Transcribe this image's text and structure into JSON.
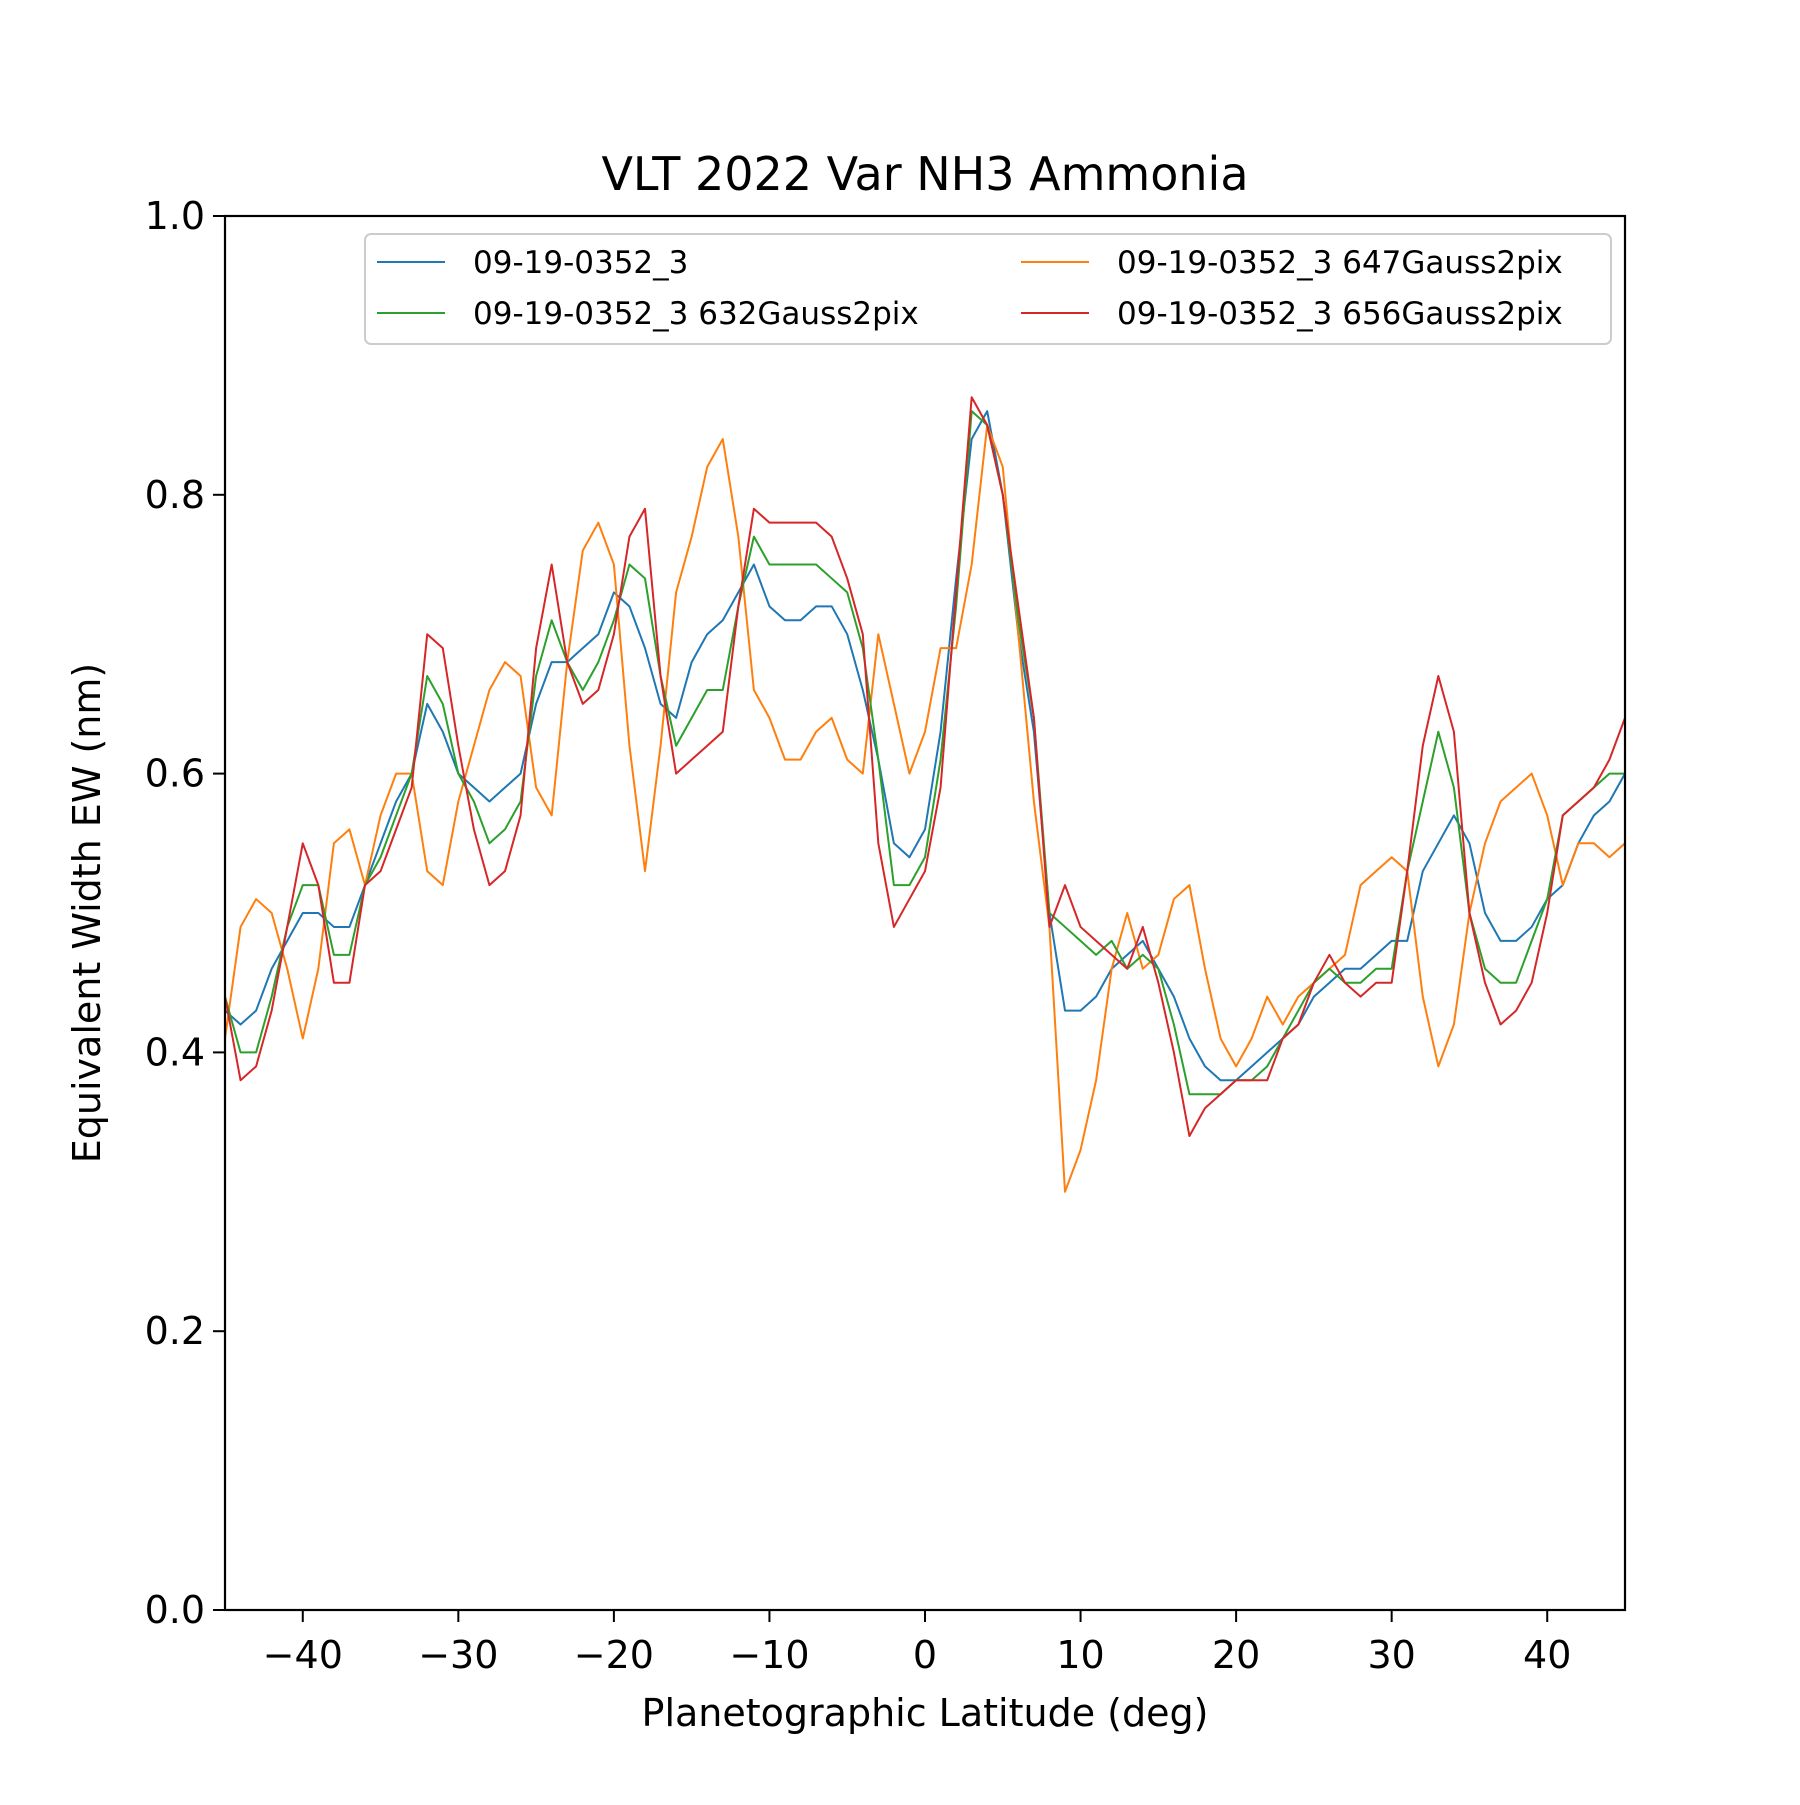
{
  "chart_data": {
    "type": "line",
    "title": "VLT 2022 Var NH3 Ammonia",
    "xlabel": "Planetographic Latitude (deg)",
    "ylabel": "Equivalent Width EW (nm)",
    "xlim": [
      -45,
      45
    ],
    "ylim": [
      0.0,
      1.0
    ],
    "grid": false,
    "legend_position": "top-right",
    "legend_columns": 2,
    "xticks": [
      -40,
      -30,
      -20,
      -10,
      0,
      10,
      20,
      30,
      40
    ],
    "xtick_labels": [
      "−40",
      "−30",
      "−20",
      "−10",
      "0",
      "10",
      "20",
      "30",
      "40"
    ],
    "yticks": [
      0.0,
      0.2,
      0.4,
      0.6,
      0.8,
      1.0
    ],
    "ytick_labels": [
      "0.0",
      "0.2",
      "0.4",
      "0.6",
      "0.8",
      "1.0"
    ],
    "x": [
      -45,
      -44,
      -43,
      -42,
      -41,
      -40,
      -39,
      -38,
      -37,
      -36,
      -35,
      -34,
      -33,
      -32,
      -31,
      -30,
      -29,
      -28,
      -27,
      -26,
      -25,
      -24,
      -23,
      -22,
      -21,
      -20,
      -19,
      -18,
      -17,
      -16,
      -15,
      -14,
      -13,
      -12,
      -11,
      -10,
      -9,
      -8,
      -7,
      -6,
      -5,
      -4,
      -3,
      -2,
      -1,
      0,
      1,
      2,
      3,
      4,
      5,
      6,
      7,
      8,
      9,
      10,
      11,
      12,
      13,
      14,
      15,
      16,
      17,
      18,
      19,
      20,
      21,
      22,
      23,
      24,
      25,
      26,
      27,
      28,
      29,
      30,
      31,
      32,
      33,
      34,
      35,
      36,
      37,
      38,
      39,
      40,
      41,
      42,
      43,
      44,
      45
    ],
    "series": [
      {
        "name": "09-19-0352_3",
        "color": "#1f77b4",
        "values": [
          0.43,
          0.42,
          0.43,
          0.46,
          0.48,
          0.5,
          0.5,
          0.49,
          0.49,
          0.52,
          0.55,
          0.58,
          0.6,
          0.65,
          0.63,
          0.6,
          0.59,
          0.58,
          0.59,
          0.6,
          0.65,
          0.68,
          0.68,
          0.69,
          0.7,
          0.73,
          0.72,
          0.69,
          0.65,
          0.64,
          0.68,
          0.7,
          0.71,
          0.73,
          0.75,
          0.72,
          0.71,
          0.71,
          0.72,
          0.72,
          0.7,
          0.66,
          0.61,
          0.55,
          0.54,
          0.56,
          0.63,
          0.74,
          0.84,
          0.86,
          0.8,
          0.7,
          0.63,
          0.5,
          0.43,
          0.43,
          0.44,
          0.46,
          0.47,
          0.48,
          0.46,
          0.44,
          0.41,
          0.39,
          0.38,
          0.38,
          0.39,
          0.4,
          0.41,
          0.42,
          0.44,
          0.45,
          0.46,
          0.46,
          0.47,
          0.48,
          0.48,
          0.53,
          0.55,
          0.57,
          0.55,
          0.5,
          0.48,
          0.48,
          0.49,
          0.51,
          0.52,
          0.55,
          0.57,
          0.58,
          0.6
        ]
      },
      {
        "name": "09-19-0352_3 647Gauss2pix",
        "color": "#ff7f0e",
        "values": [
          0.41,
          0.49,
          0.51,
          0.5,
          0.46,
          0.41,
          0.46,
          0.55,
          0.56,
          0.52,
          0.57,
          0.6,
          0.6,
          0.53,
          0.52,
          0.58,
          0.62,
          0.66,
          0.68,
          0.67,
          0.59,
          0.57,
          0.68,
          0.76,
          0.78,
          0.75,
          0.62,
          0.53,
          0.62,
          0.73,
          0.77,
          0.82,
          0.84,
          0.77,
          0.66,
          0.64,
          0.61,
          0.61,
          0.63,
          0.64,
          0.61,
          0.6,
          0.7,
          0.65,
          0.6,
          0.63,
          0.69,
          0.69,
          0.75,
          0.85,
          0.82,
          0.7,
          0.58,
          0.49,
          0.3,
          0.33,
          0.38,
          0.46,
          0.5,
          0.46,
          0.47,
          0.51,
          0.52,
          0.46,
          0.41,
          0.39,
          0.41,
          0.44,
          0.42,
          0.44,
          0.45,
          0.46,
          0.47,
          0.52,
          0.53,
          0.54,
          0.53,
          0.44,
          0.39,
          0.42,
          0.5,
          0.55,
          0.58,
          0.59,
          0.6,
          0.57,
          0.52,
          0.55,
          0.55,
          0.54,
          0.55
        ]
      },
      {
        "name": "09-19-0352_3 632Gauss2pix",
        "color": "#2ca02c",
        "values": [
          0.44,
          0.4,
          0.4,
          0.44,
          0.49,
          0.52,
          0.52,
          0.47,
          0.47,
          0.52,
          0.54,
          0.57,
          0.6,
          0.67,
          0.65,
          0.6,
          0.58,
          0.55,
          0.56,
          0.58,
          0.67,
          0.71,
          0.68,
          0.66,
          0.68,
          0.71,
          0.75,
          0.74,
          0.67,
          0.62,
          0.64,
          0.66,
          0.66,
          0.72,
          0.77,
          0.75,
          0.75,
          0.75,
          0.75,
          0.74,
          0.73,
          0.69,
          0.61,
          0.52,
          0.52,
          0.54,
          0.61,
          0.72,
          0.86,
          0.85,
          0.8,
          0.71,
          0.64,
          0.5,
          0.49,
          0.48,
          0.47,
          0.48,
          0.46,
          0.47,
          0.46,
          0.42,
          0.37,
          0.37,
          0.37,
          0.38,
          0.38,
          0.39,
          0.41,
          0.43,
          0.45,
          0.46,
          0.45,
          0.45,
          0.46,
          0.46,
          0.53,
          0.58,
          0.63,
          0.59,
          0.5,
          0.46,
          0.45,
          0.45,
          0.48,
          0.51,
          0.57,
          0.58,
          0.59,
          0.6,
          0.6
        ]
      },
      {
        "name": "09-19-0352_3 656Gauss2pix",
        "color": "#d62728",
        "values": [
          0.44,
          0.38,
          0.39,
          0.43,
          0.49,
          0.55,
          0.52,
          0.45,
          0.45,
          0.52,
          0.53,
          0.56,
          0.59,
          0.7,
          0.69,
          0.62,
          0.56,
          0.52,
          0.53,
          0.57,
          0.69,
          0.75,
          0.68,
          0.65,
          0.66,
          0.7,
          0.77,
          0.79,
          0.67,
          0.6,
          0.61,
          0.62,
          0.63,
          0.72,
          0.79,
          0.78,
          0.78,
          0.78,
          0.78,
          0.77,
          0.74,
          0.7,
          0.55,
          0.49,
          0.51,
          0.53,
          0.59,
          0.73,
          0.87,
          0.85,
          0.8,
          0.72,
          0.64,
          0.49,
          0.52,
          0.49,
          0.48,
          0.47,
          0.46,
          0.49,
          0.45,
          0.4,
          0.34,
          0.36,
          0.37,
          0.38,
          0.38,
          0.38,
          0.41,
          0.42,
          0.45,
          0.47,
          0.45,
          0.44,
          0.45,
          0.45,
          0.53,
          0.62,
          0.67,
          0.63,
          0.5,
          0.45,
          0.42,
          0.43,
          0.45,
          0.5,
          0.57,
          0.58,
          0.59,
          0.61,
          0.64
        ]
      }
    ]
  }
}
